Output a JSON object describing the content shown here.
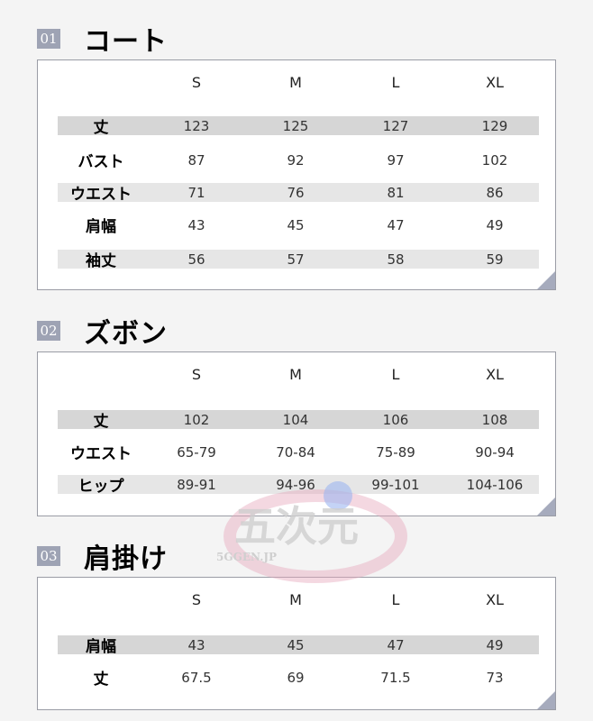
{
  "sizes": [
    "S",
    "M",
    "L",
    "XL"
  ],
  "sections": [
    {
      "num": "01",
      "title": "コート",
      "rows": [
        {
          "label": "丈",
          "values": [
            "123",
            "125",
            "127",
            "129"
          ]
        },
        {
          "label": "バスト",
          "values": [
            "87",
            "92",
            "97",
            "102"
          ]
        },
        {
          "label": "ウエスト",
          "values": [
            "71",
            "76",
            "81",
            "86"
          ]
        },
        {
          "label": "肩幅",
          "values": [
            "43",
            "45",
            "47",
            "49"
          ]
        },
        {
          "label": "袖丈",
          "values": [
            "56",
            "57",
            "58",
            "59"
          ]
        }
      ]
    },
    {
      "num": "02",
      "title": "ズボン",
      "rows": [
        {
          "label": "丈",
          "values": [
            "102",
            "104",
            "106",
            "108"
          ]
        },
        {
          "label": "ウエスト",
          "values": [
            "65-79",
            "70-84",
            "75-89",
            "90-94"
          ]
        },
        {
          "label": "ヒップ",
          "values": [
            "89-91",
            "94-96",
            "99-101",
            "104-106"
          ]
        }
      ]
    },
    {
      "num": "03",
      "title": "肩掛け",
      "rows": [
        {
          "label": "肩幅",
          "values": [
            "43",
            "45",
            "47",
            "49"
          ]
        },
        {
          "label": "丈",
          "values": [
            "67.5",
            "69",
            "71.5",
            "73"
          ]
        }
      ]
    }
  ],
  "watermark": {
    "logo_text": "五次元",
    "site": "5GGEN.JP"
  },
  "colors": {
    "badge": "#9ea3b4",
    "stripe": "#d6d6d6",
    "corner": "#a6abbd"
  }
}
